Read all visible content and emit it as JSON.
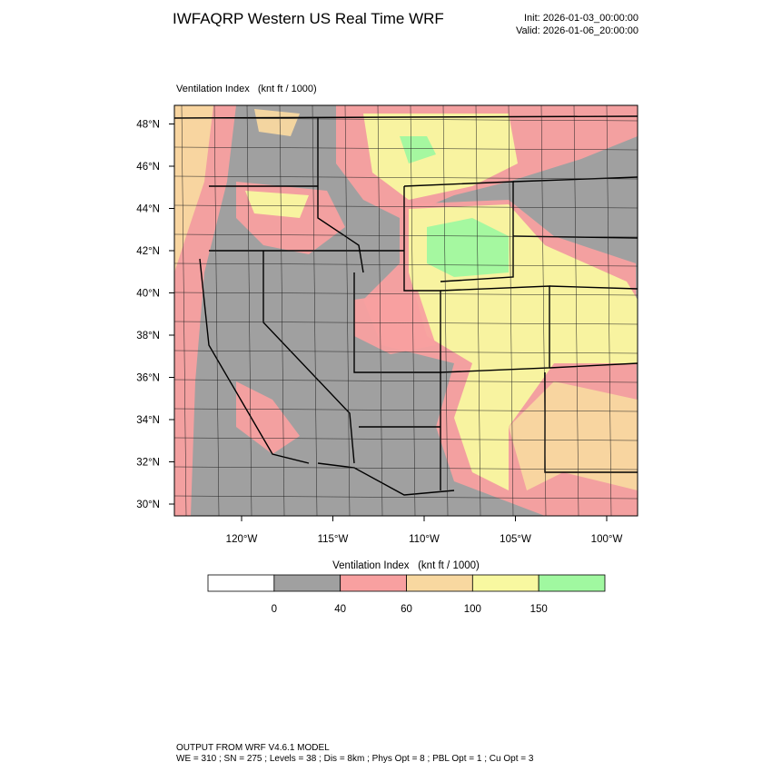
{
  "header": {
    "title": "IWFAQRP Western US Real Time WRF",
    "init": "Init: 2026-01-03_00:00:00",
    "valid": "Valid: 2026-01-06_20:00:00"
  },
  "map": {
    "label": "Ventilation Index   (knt ft / 1000)",
    "lat_labels": [
      "30°N",
      "32°N",
      "34°N",
      "36°N",
      "38°N",
      "40°N",
      "42°N",
      "44°N",
      "46°N",
      "48°N"
    ],
    "lon_labels": [
      "120°W",
      "115°W",
      "110°W",
      "105°W",
      "100°W"
    ]
  },
  "colorbar": {
    "title": "Ventilation Index   (knt ft / 1000)",
    "colors": [
      "#ffffff",
      "#a0a0a0",
      "#f8a0a0",
      "#f8d8a0",
      "#f8f8a0",
      "#a0f8a0"
    ],
    "labels": [
      "0",
      "40",
      "60",
      "100",
      "150"
    ]
  },
  "footer": {
    "line1": "OUTPUT FROM WRF V4.6.1 MODEL",
    "line2": "WE = 310 ; SN = 275 ; Levels = 38 ; Dis = 8km ; Phys Opt = 8 ; PBL Opt = 1 ; Cu Opt = 3"
  }
}
